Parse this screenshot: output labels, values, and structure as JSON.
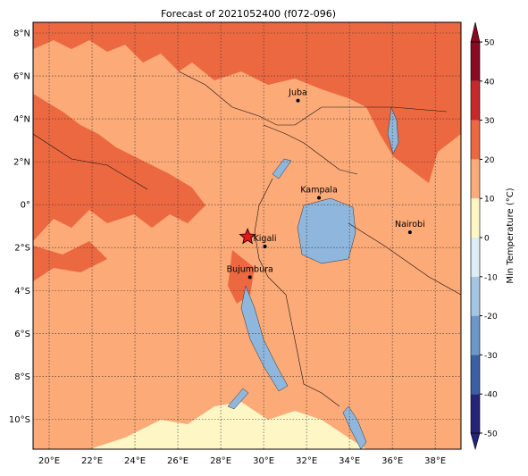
{
  "chart_data": {
    "type": "map",
    "title": "Forecast of 2021052400 (f072-096)",
    "xlim": [
      19.25,
      39.2
    ],
    "ylim": [
      -11.4,
      8.5
    ],
    "xticks": [
      {
        "value": 20,
        "label": "20°E"
      },
      {
        "value": 22,
        "label": "22°E"
      },
      {
        "value": 24,
        "label": "24°E"
      },
      {
        "value": 26,
        "label": "26°E"
      },
      {
        "value": 28,
        "label": "28°E"
      },
      {
        "value": 30,
        "label": "30°E"
      },
      {
        "value": 32,
        "label": "32°E"
      },
      {
        "value": 34,
        "label": "34°E"
      },
      {
        "value": 36,
        "label": "36°E"
      },
      {
        "value": 38,
        "label": "38°E"
      }
    ],
    "yticks": [
      {
        "value": 8,
        "label": "8°N"
      },
      {
        "value": 6,
        "label": "6°N"
      },
      {
        "value": 4,
        "label": "4°N"
      },
      {
        "value": 2,
        "label": "2°N"
      },
      {
        "value": 0,
        "label": "0°"
      },
      {
        "value": -2,
        "label": "2°S"
      },
      {
        "value": -4,
        "label": "4°S"
      },
      {
        "value": -6,
        "label": "6°S"
      },
      {
        "value": -8,
        "label": "8°S"
      },
      {
        "value": -10,
        "label": "10°S"
      }
    ],
    "grid": true,
    "cities": [
      {
        "name": "Juba",
        "lon": 31.6,
        "lat": 4.85
      },
      {
        "name": "Kampala",
        "lon": 32.58,
        "lat": 0.32
      },
      {
        "name": "Nairobi",
        "lon": 36.82,
        "lat": -1.29
      },
      {
        "name": "Kigali",
        "lon": 30.06,
        "lat": -1.95
      },
      {
        "name": "Bujumbura",
        "lon": 29.36,
        "lat": -3.38
      }
    ],
    "marker": {
      "lon": 29.25,
      "lat": -1.5
    },
    "colorbar": {
      "label": "Min Temperature (°C)",
      "ticks": [
        -50,
        -40,
        -30,
        -20,
        -10,
        0,
        10,
        20,
        30,
        40,
        50
      ],
      "colors": [
        "#24247a",
        "#3a5fa6",
        "#6b98c9",
        "#a4c6e2",
        "#dcedf5",
        "#fff6c6",
        "#fcaa77",
        "#ec6840",
        "#c8282b",
        "#8a0a24"
      ]
    }
  }
}
